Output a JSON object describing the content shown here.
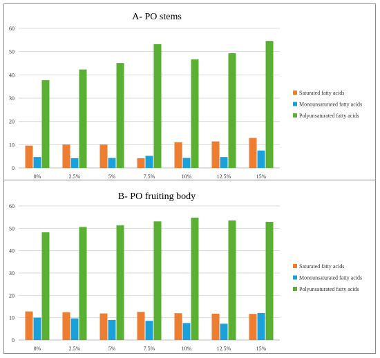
{
  "colors": {
    "saturated": "#ED7D31",
    "monounsaturated": "#1CA0DA",
    "polyunsaturated": "#5AB033",
    "gridline": "#d9d9d9",
    "axis": "#bfbfbf"
  },
  "chart_data": [
    {
      "type": "bar",
      "title": "A- PO stems",
      "xlabel": "",
      "ylabel": "",
      "categories": [
        "0%",
        "2.5%",
        "5%",
        "7.5%",
        "10%",
        "12.5%",
        "15%"
      ],
      "ylim": [
        0,
        60
      ],
      "yticks": [
        "0",
        "10",
        "20",
        "30",
        "40",
        "50",
        "60"
      ],
      "grid": true,
      "legend_position": "right",
      "series": [
        {
          "name": "Saturated fatty acids",
          "color_key": "saturated",
          "values": [
            9.6,
            10.1,
            10.1,
            4.2,
            11.0,
            11.4,
            12.9
          ]
        },
        {
          "name": "Monounsaturated fatty acids",
          "color_key": "monounsaturated",
          "values": [
            4.7,
            4.2,
            4.3,
            5.2,
            4.3,
            4.7,
            7.5
          ]
        },
        {
          "name": "Polyunsaturated fatty acids",
          "color_key": "polyunsaturated",
          "values": [
            37.7,
            42.3,
            45.1,
            53.2,
            46.7,
            49.3,
            54.6
          ]
        }
      ]
    },
    {
      "type": "bar",
      "title": "B- PO fruiting body",
      "xlabel": "",
      "ylabel": "",
      "categories": [
        "0%",
        "2.5%",
        "5%",
        "7.5%",
        "10%",
        "12.5%",
        "15%"
      ],
      "ylim": [
        0,
        60
      ],
      "yticks": [
        "0",
        "10",
        "20",
        "30",
        "40",
        "50",
        "60"
      ],
      "grid": true,
      "legend_position": "right",
      "series": [
        {
          "name": "Saturated fatty acids",
          "color_key": "saturated",
          "values": [
            12.8,
            12.4,
            11.9,
            12.6,
            12.0,
            11.8,
            11.7
          ]
        },
        {
          "name": "Monounsaturated fatty acids",
          "color_key": "monounsaturated",
          "values": [
            10.0,
            9.7,
            9.0,
            8.6,
            7.6,
            7.3,
            12.1
          ]
        },
        {
          "name": "Polyunsaturated fatty acids",
          "color_key": "polyunsaturated",
          "values": [
            48.2,
            50.6,
            51.3,
            53.1,
            54.8,
            53.5,
            52.9
          ]
        }
      ]
    }
  ]
}
